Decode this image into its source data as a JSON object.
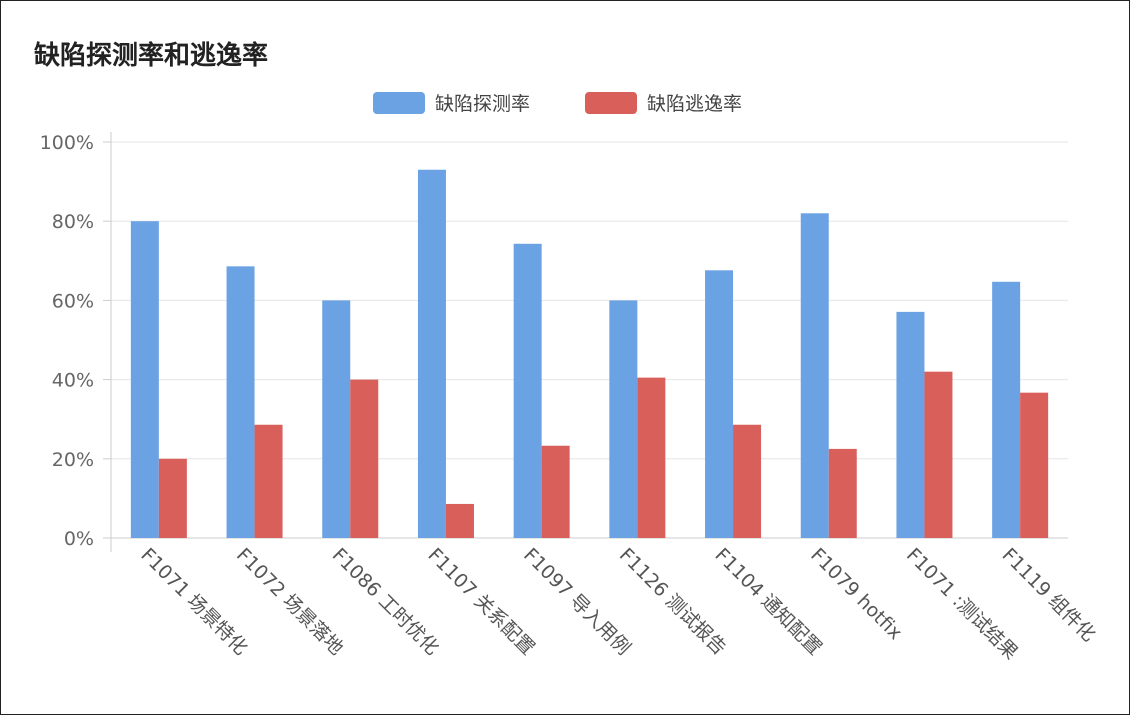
{
  "chart_data": {
    "type": "bar",
    "title": "缺陷探测率和逃逸率",
    "categories": [
      "F1071 场景特化",
      "F1072 场景落地",
      "F1086 工时优化",
      "F1107 关系配置",
      "F1097 导入用例",
      "F1126 测试报告",
      "F1104 通知配置",
      "F1079 hotfix",
      "F1071 :测试结果",
      "F1119 组件化"
    ],
    "series": [
      {
        "name": "缺陷探测率",
        "color": "#6ba2e4",
        "values": [
          80,
          68.6,
          60,
          93,
          74.3,
          60,
          67.6,
          82,
          57.1,
          64.7
        ]
      },
      {
        "name": "缺陷逃逸率",
        "color": "#d95f5b",
        "values": [
          20,
          28.6,
          40,
          8.6,
          23.3,
          40.5,
          28.6,
          22.5,
          42,
          36.7
        ]
      }
    ],
    "y_ticks": [
      "0%",
      "20%",
      "40%",
      "60%",
      "80%",
      "100%"
    ],
    "ylim": [
      0,
      100
    ],
    "grid": true,
    "legend_position": "top-center"
  }
}
